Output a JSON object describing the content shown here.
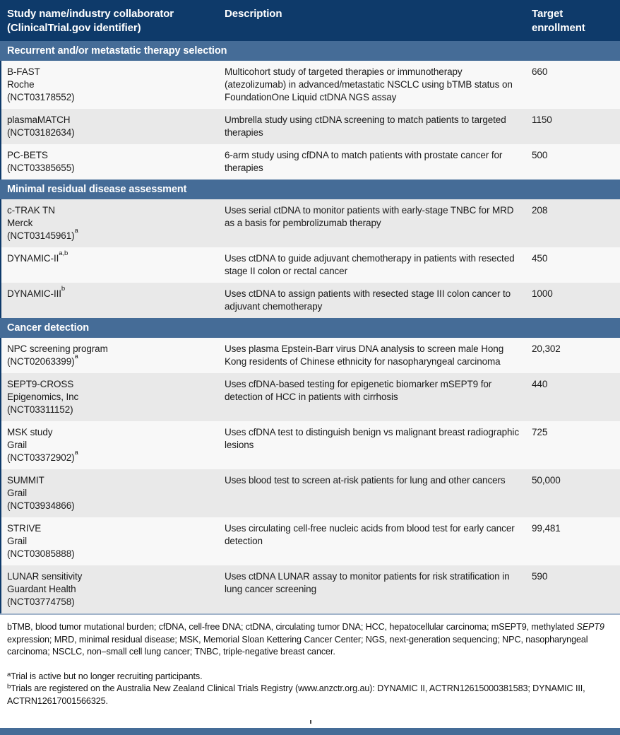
{
  "colors": {
    "header_bg": "#0e3a6a",
    "band_bg": "#456c97",
    "row_bg": "#f8f8f8",
    "row_alt_bg": "#e9e9e9",
    "header_text": "#ffffff",
    "body_text": "#1a1a1a"
  },
  "table": {
    "header": {
      "col1_line1": "Study name/industry collaborator",
      "col1_line2": "(ClinicalTrial.gov identifier)",
      "col2": "Description",
      "col3_line1": "Target",
      "col3_line2": "enrollment"
    },
    "sections": [
      {
        "title": "Recurrent and/or metastatic therapy selection",
        "rows": [
          {
            "name_lines": [
              {
                "text": "B-FAST"
              },
              {
                "text": "Roche"
              },
              {
                "text": "(NCT03178552)"
              }
            ],
            "description": "Multicohort study of targeted therapies or immunotherapy (atezolizumab) in advanced/metastatic NSCLC using bTMB status on FoundationOne Liquid ctDNA NGS assay",
            "enrollment": "660"
          },
          {
            "name_lines": [
              {
                "text": "plasmaMATCH"
              },
              {
                "text": "(NCT03182634)"
              }
            ],
            "description": "Umbrella study using ctDNA screening to match patients to targeted therapies",
            "enrollment": "1150"
          },
          {
            "name_lines": [
              {
                "text": "PC-BETS"
              },
              {
                "text": "(NCT03385655)"
              }
            ],
            "description": "6-arm study using cfDNA to match patients with prostate cancer for therapies",
            "enrollment": "500"
          }
        ]
      },
      {
        "title": "Minimal residual disease assessment",
        "rows": [
          {
            "name_lines": [
              {
                "text": "c-TRAK TN"
              },
              {
                "text": "Merck"
              },
              {
                "text": "(NCT03145961)",
                "sup": "a"
              }
            ],
            "description": "Uses serial ctDNA to monitor patients with early-stage TNBC for MRD as a basis for pembrolizumab therapy",
            "enrollment": "208"
          },
          {
            "name_lines": [
              {
                "text": "DYNAMIC-II",
                "sup": "a,b"
              }
            ],
            "description": "Uses ctDNA to guide adjuvant chemotherapy in patients with resected stage II colon or rectal cancer",
            "enrollment": "450"
          },
          {
            "name_lines": [
              {
                "text": "DYNAMIC-III",
                "sup": "b"
              }
            ],
            "description": "Uses ctDNA to assign patients with resected stage III colon cancer to adjuvant chemotherapy",
            "enrollment": "1000"
          }
        ]
      },
      {
        "title": "Cancer detection",
        "rows": [
          {
            "name_lines": [
              {
                "text": "NPC screening program"
              },
              {
                "text": "(NCT02063399)",
                "sup": "a"
              }
            ],
            "description": "Uses plasma Epstein-Barr virus DNA analysis to screen male Hong Kong residents of Chinese ethnicity for nasopharyngeal carcinoma",
            "enrollment": "20,302"
          },
          {
            "name_lines": [
              {
                "text": "SEPT9-CROSS"
              },
              {
                "text": "Epigenomics, Inc"
              },
              {
                "text": "(NCT03311152)"
              }
            ],
            "description": "Uses cfDNA-based testing for epigenetic biomarker mSEPT9 for detection of HCC in patients with cirrhosis",
            "enrollment": "440"
          },
          {
            "name_lines": [
              {
                "text": "MSK study"
              },
              {
                "text": "Grail"
              },
              {
                "text": "(NCT03372902)",
                "sup": "a"
              }
            ],
            "description": "Uses cfDNA test to distinguish benign vs malignant breast radiographic lesions",
            "enrollment": "725"
          },
          {
            "name_lines": [
              {
                "text": "SUMMIT"
              },
              {
                "text": "Grail"
              },
              {
                "text": "(NCT03934866)"
              }
            ],
            "description": "Uses blood test to screen at-risk patients for lung and other cancers",
            "enrollment": "50,000"
          },
          {
            "name_lines": [
              {
                "text": "STRIVE"
              },
              {
                "text": "Grail"
              },
              {
                "text": "(NCT03085888)"
              }
            ],
            "description": "Uses circulating cell-free nucleic acids from blood test for early cancer detection",
            "enrollment": "99,481"
          },
          {
            "name_lines": [
              {
                "text": "LUNAR sensitivity"
              },
              {
                "text": "Guardant Health"
              },
              {
                "text": "(NCT03774758)"
              }
            ],
            "description": "Uses ctDNA LUNAR assay to monitor patients for risk stratification in lung cancer screening",
            "enrollment": "590"
          }
        ]
      }
    ]
  },
  "footnotes": {
    "abbrev_part1": "bTMB, blood tumor mutational burden; cfDNA, cell-free DNA; ctDNA, circulating tumor DNA; HCC, hepatocellular carcinoma; mSEPT9, methylated ",
    "abbrev_italic": "SEPT9",
    "abbrev_part2": " expression; MRD, minimal residual disease; MSK, Memorial Sloan Kettering Cancer Center; NGS, next-generation sequencing; NPC, nasopharyngeal carcinoma; NSCLC, non–small cell lung cancer; TNBC, triple-negative breast cancer.",
    "note_a_marker": "a",
    "note_a_text": "Trial is active but no longer recruiting participants.",
    "note_b_marker": "b",
    "note_b_text": "Trials are registered on the Australia New Zealand Clinical Trials Registry (www.anzctr.org.au): DYNAMIC II, ACTRN12615000381583; DYNAMIC III, ACTRN12617001566325."
  }
}
